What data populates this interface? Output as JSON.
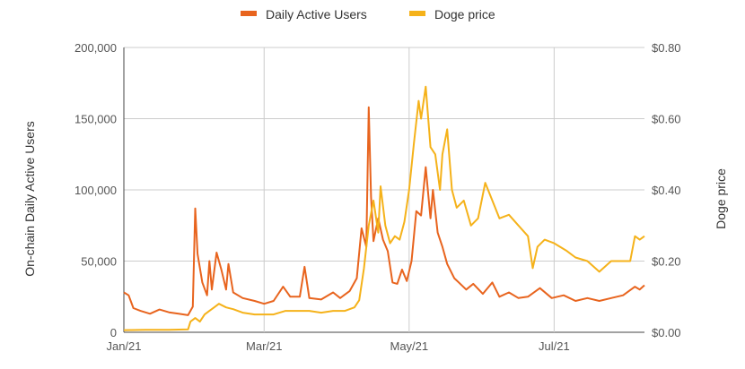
{
  "chart_data": {
    "type": "line",
    "title": "",
    "legend_position": "top",
    "grid": true,
    "x_tick_labels": [
      "Jan/21",
      "Mar/21",
      "May/21",
      "Jul/21"
    ],
    "x_range": [
      "2021-01-01",
      "2021-08-08"
    ],
    "left_axis": {
      "label": "On-chain Daily Active Users",
      "ylim": [
        0,
        200000
      ],
      "tick_labels": [
        "0",
        "50,000",
        "100,000",
        "150,000",
        "200,000"
      ]
    },
    "right_axis": {
      "label": "Doge price",
      "ylim": [
        0,
        0.8
      ],
      "tick_labels": [
        "$0.00",
        "$0.20",
        "$0.40",
        "$0.60",
        "$0.80"
      ]
    },
    "series": [
      {
        "name": "Daily Active Users",
        "axis": "left",
        "color": "#e8641e",
        "points": [
          [
            "2021-01-01",
            28000
          ],
          [
            "2021-01-03",
            26000
          ],
          [
            "2021-01-05",
            17000
          ],
          [
            "2021-01-08",
            15000
          ],
          [
            "2021-01-12",
            13000
          ],
          [
            "2021-01-16",
            16000
          ],
          [
            "2021-01-20",
            14000
          ],
          [
            "2021-01-24",
            13000
          ],
          [
            "2021-01-28",
            12000
          ],
          [
            "2021-01-30",
            18000
          ],
          [
            "2021-01-31",
            87000
          ],
          [
            "2021-02-01",
            55000
          ],
          [
            "2021-02-03",
            35000
          ],
          [
            "2021-02-05",
            26000
          ],
          [
            "2021-02-06",
            50000
          ],
          [
            "2021-02-07",
            30000
          ],
          [
            "2021-02-09",
            56000
          ],
          [
            "2021-02-11",
            44000
          ],
          [
            "2021-02-13",
            30000
          ],
          [
            "2021-02-14",
            48000
          ],
          [
            "2021-02-16",
            28000
          ],
          [
            "2021-02-20",
            24000
          ],
          [
            "2021-02-25",
            22000
          ],
          [
            "2021-03-01",
            20000
          ],
          [
            "2021-03-05",
            22000
          ],
          [
            "2021-03-09",
            32000
          ],
          [
            "2021-03-12",
            25000
          ],
          [
            "2021-03-16",
            25000
          ],
          [
            "2021-03-18",
            46000
          ],
          [
            "2021-03-20",
            24000
          ],
          [
            "2021-03-25",
            23000
          ],
          [
            "2021-03-30",
            28000
          ],
          [
            "2021-04-02",
            24000
          ],
          [
            "2021-04-06",
            29000
          ],
          [
            "2021-04-09",
            38000
          ],
          [
            "2021-04-11",
            73000
          ],
          [
            "2021-04-13",
            60000
          ],
          [
            "2021-04-14",
            158000
          ],
          [
            "2021-04-15",
            95000
          ],
          [
            "2021-04-16",
            64000
          ],
          [
            "2021-04-18",
            80000
          ],
          [
            "2021-04-20",
            65000
          ],
          [
            "2021-04-22",
            57000
          ],
          [
            "2021-04-24",
            35000
          ],
          [
            "2021-04-26",
            34000
          ],
          [
            "2021-04-28",
            44000
          ],
          [
            "2021-04-30",
            36000
          ],
          [
            "2021-05-02",
            50000
          ],
          [
            "2021-05-04",
            85000
          ],
          [
            "2021-05-06",
            82000
          ],
          [
            "2021-05-08",
            116000
          ],
          [
            "2021-05-10",
            80000
          ],
          [
            "2021-05-11",
            100000
          ],
          [
            "2021-05-13",
            70000
          ],
          [
            "2021-05-15",
            60000
          ],
          [
            "2021-05-17",
            48000
          ],
          [
            "2021-05-20",
            38000
          ],
          [
            "2021-05-25",
            30000
          ],
          [
            "2021-05-28",
            34000
          ],
          [
            "2021-06-01",
            27000
          ],
          [
            "2021-06-05",
            35000
          ],
          [
            "2021-06-08",
            25000
          ],
          [
            "2021-06-12",
            28000
          ],
          [
            "2021-06-16",
            24000
          ],
          [
            "2021-06-20",
            25000
          ],
          [
            "2021-06-25",
            31000
          ],
          [
            "2021-06-30",
            24000
          ],
          [
            "2021-07-05",
            26000
          ],
          [
            "2021-07-10",
            22000
          ],
          [
            "2021-07-15",
            24000
          ],
          [
            "2021-07-20",
            22000
          ],
          [
            "2021-07-25",
            24000
          ],
          [
            "2021-07-30",
            26000
          ],
          [
            "2021-08-04",
            32000
          ],
          [
            "2021-08-06",
            30000
          ],
          [
            "2021-08-08",
            33000
          ]
        ]
      },
      {
        "name": "Doge price",
        "axis": "right",
        "color": "#f5b21a",
        "points": [
          [
            "2021-01-01",
            0.006
          ],
          [
            "2021-01-10",
            0.007
          ],
          [
            "2021-01-20",
            0.007
          ],
          [
            "2021-01-28",
            0.008
          ],
          [
            "2021-01-29",
            0.03
          ],
          [
            "2021-01-31",
            0.04
          ],
          [
            "2021-02-02",
            0.03
          ],
          [
            "2021-02-04",
            0.05
          ],
          [
            "2021-02-06",
            0.06
          ],
          [
            "2021-02-08",
            0.07
          ],
          [
            "2021-02-10",
            0.08
          ],
          [
            "2021-02-13",
            0.07
          ],
          [
            "2021-02-16",
            0.065
          ],
          [
            "2021-02-20",
            0.055
          ],
          [
            "2021-02-25",
            0.05
          ],
          [
            "2021-03-01",
            0.05
          ],
          [
            "2021-03-05",
            0.05
          ],
          [
            "2021-03-10",
            0.06
          ],
          [
            "2021-03-15",
            0.06
          ],
          [
            "2021-03-20",
            0.06
          ],
          [
            "2021-03-25",
            0.055
          ],
          [
            "2021-03-30",
            0.06
          ],
          [
            "2021-04-04",
            0.06
          ],
          [
            "2021-04-08",
            0.07
          ],
          [
            "2021-04-10",
            0.09
          ],
          [
            "2021-04-12",
            0.18
          ],
          [
            "2021-04-14",
            0.3
          ],
          [
            "2021-04-16",
            0.37
          ],
          [
            "2021-04-18",
            0.28
          ],
          [
            "2021-04-19",
            0.41
          ],
          [
            "2021-04-21",
            0.3
          ],
          [
            "2021-04-23",
            0.25
          ],
          [
            "2021-04-25",
            0.27
          ],
          [
            "2021-04-27",
            0.26
          ],
          [
            "2021-04-29",
            0.31
          ],
          [
            "2021-05-01",
            0.4
          ],
          [
            "2021-05-03",
            0.53
          ],
          [
            "2021-05-05",
            0.65
          ],
          [
            "2021-05-06",
            0.6
          ],
          [
            "2021-05-08",
            0.69
          ],
          [
            "2021-05-10",
            0.52
          ],
          [
            "2021-05-12",
            0.5
          ],
          [
            "2021-05-14",
            0.4
          ],
          [
            "2021-05-15",
            0.5
          ],
          [
            "2021-05-17",
            0.57
          ],
          [
            "2021-05-19",
            0.4
          ],
          [
            "2021-05-21",
            0.35
          ],
          [
            "2021-05-24",
            0.37
          ],
          [
            "2021-05-27",
            0.3
          ],
          [
            "2021-05-30",
            0.32
          ],
          [
            "2021-06-02",
            0.42
          ],
          [
            "2021-06-05",
            0.37
          ],
          [
            "2021-06-08",
            0.32
          ],
          [
            "2021-06-12",
            0.33
          ],
          [
            "2021-06-16",
            0.3
          ],
          [
            "2021-06-20",
            0.27
          ],
          [
            "2021-06-22",
            0.18
          ],
          [
            "2021-06-24",
            0.24
          ],
          [
            "2021-06-27",
            0.26
          ],
          [
            "2021-07-01",
            0.25
          ],
          [
            "2021-07-06",
            0.23
          ],
          [
            "2021-07-10",
            0.21
          ],
          [
            "2021-07-15",
            0.2
          ],
          [
            "2021-07-20",
            0.17
          ],
          [
            "2021-07-25",
            0.2
          ],
          [
            "2021-07-30",
            0.2
          ],
          [
            "2021-08-02",
            0.2
          ],
          [
            "2021-08-04",
            0.27
          ],
          [
            "2021-08-06",
            0.26
          ],
          [
            "2021-08-08",
            0.27
          ]
        ]
      }
    ]
  }
}
